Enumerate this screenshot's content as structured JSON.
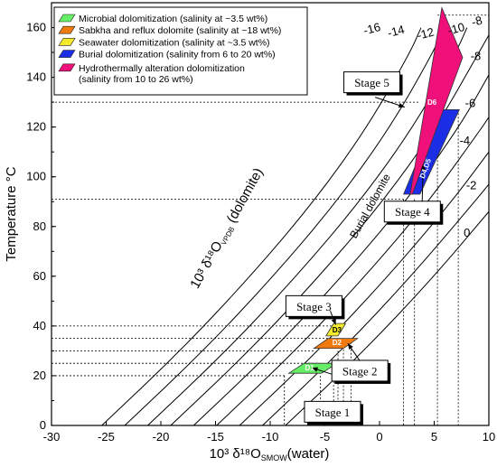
{
  "chart_data": {
    "type": "line",
    "xlabel": "10³ δ¹⁸O",
    "xlabel_sub": "SMOW",
    "xlabel_tail": "(water)",
    "ylabel": "Temperature °C",
    "xlim": [
      -30,
      10
    ],
    "ylim": [
      0,
      170
    ],
    "xticks": [
      -30,
      -25,
      -20,
      -15,
      -10,
      -5,
      0,
      5,
      10
    ],
    "yticks": [
      0,
      20,
      40,
      60,
      80,
      100,
      120,
      140,
      160
    ],
    "curve_axis_label_a": "10³ δ¹⁸O",
    "curve_axis_label_sub": "VPDB",
    "curve_axis_label_b": "(dolomite)",
    "burial_label": "Burial dolomite",
    "series": [
      {
        "dolomite_d18O": 0,
        "label": "0",
        "points": [
          [
            -25.4,
            0
          ],
          [
            -18.2,
            30
          ],
          [
            -11.8,
            60
          ],
          [
            -6.0,
            90
          ],
          [
            -1.1,
            120
          ],
          [
            2.8,
            150
          ],
          [
            3.8,
            160
          ]
        ]
      },
      {
        "dolomite_d18O": -2,
        "label": "",
        "points": [
          [
            -23.3,
            0
          ],
          [
            -16.1,
            30
          ],
          [
            -9.7,
            60
          ],
          [
            -3.9,
            90
          ],
          [
            1.0,
            120
          ],
          [
            4.9,
            150
          ],
          [
            5.9,
            160
          ]
        ]
      },
      {
        "dolomite_d18O": -4,
        "label": "-4",
        "points": [
          [
            -21.2,
            0
          ],
          [
            -14.0,
            30
          ],
          [
            -7.6,
            60
          ],
          [
            -1.8,
            90
          ],
          [
            3.1,
            120
          ],
          [
            7.0,
            150
          ],
          [
            8.0,
            160
          ]
        ]
      },
      {
        "dolomite_d18O": -6,
        "label": "-6",
        "points": [
          [
            -19.1,
            0
          ],
          [
            -11.9,
            30
          ],
          [
            -5.5,
            60
          ],
          [
            0.3,
            90
          ],
          [
            5.2,
            120
          ],
          [
            9.1,
            150
          ],
          [
            10.0,
            157
          ]
        ]
      },
      {
        "dolomite_d18O": -8,
        "label": "-8",
        "points": [
          [
            -17.0,
            0
          ],
          [
            -9.8,
            30
          ],
          [
            -3.4,
            60
          ],
          [
            2.4,
            90
          ],
          [
            7.3,
            120
          ],
          [
            10.0,
            141
          ]
        ]
      },
      {
        "dolomite_d18O": -10,
        "label": "-10",
        "points": [
          [
            -14.9,
            0
          ],
          [
            -7.7,
            30
          ],
          [
            -1.3,
            60
          ],
          [
            4.5,
            90
          ],
          [
            9.4,
            120
          ],
          [
            10.0,
            124
          ]
        ]
      },
      {
        "dolomite_d18O": -12,
        "label": "-12",
        "points": [
          [
            -12.8,
            0
          ],
          [
            -5.6,
            30
          ],
          [
            0.8,
            60
          ],
          [
            6.6,
            90
          ],
          [
            10.0,
            110
          ]
        ]
      },
      {
        "dolomite_d18O": -14,
        "label": "-14",
        "points": [
          [
            -10.7,
            0
          ],
          [
            -3.5,
            30
          ],
          [
            2.9,
            60
          ],
          [
            8.7,
            90
          ],
          [
            10.0,
            97
          ]
        ]
      },
      {
        "dolomite_d18O": -16,
        "label": "-16",
        "points": [
          [
            -8.6,
            0
          ],
          [
            -1.4,
            30
          ],
          [
            5.0,
            60
          ],
          [
            10.0,
            86
          ]
        ]
      }
    ],
    "top_labels": [
      "-16",
      "-14",
      "-12",
      "-10",
      "-8",
      "-6",
      "-4",
      "-2",
      "0"
    ],
    "regions": [
      {
        "label": "D1",
        "name": "Microbial dolomitization",
        "color": "#66ee66",
        "polygon": [
          [
            -8.3,
            21
          ],
          [
            -5.3,
            21
          ],
          [
            -3.9,
            25
          ],
          [
            -6.9,
            25
          ]
        ]
      },
      {
        "label": "D2",
        "name": "Sabkha and reflux dolomite",
        "color": "#f07a10",
        "polygon": [
          [
            -6.0,
            31
          ],
          [
            -3.3,
            31
          ],
          [
            -2.0,
            35
          ],
          [
            -4.7,
            35
          ]
        ]
      },
      {
        "label": "D3",
        "name": "Seawater dolomitization",
        "color": "#f2ea2a",
        "polygon": [
          [
            -4.9,
            36
          ],
          [
            -3.8,
            36
          ],
          [
            -3.1,
            41
          ],
          [
            -4.2,
            41
          ]
        ]
      },
      {
        "label": "D4,D5",
        "name": "Burial dolomitization",
        "color": "#1b2ee6",
        "polygon": [
          [
            2.2,
            93
          ],
          [
            3.7,
            93
          ],
          [
            7.3,
            127
          ],
          [
            5.4,
            127
          ]
        ]
      },
      {
        "label": "D6",
        "name": "Hydrothermally alteration dolomitization",
        "color": "#f0107a",
        "polygon": [
          [
            2.8,
            93
          ],
          [
            5.7,
            168
          ],
          [
            7.6,
            148
          ],
          [
            3.0,
            93
          ]
        ]
      }
    ],
    "legend": [
      {
        "color": "#66ee66",
        "text": "Microbial dolomitization (salinity at ~3.5 wt%)"
      },
      {
        "color": "#f07a10",
        "text": "Sabkha and reflux dolomite (salinity at ~18 wt%)"
      },
      {
        "color": "#f2ea2a",
        "text": "Seawater  dolomitization (salinity at ~3.5 wt%)"
      },
      {
        "color": "#1b2ee6",
        "text": "Burial  dolomitization (salinity from 6 to 20 wt%)"
      },
      {
        "color": "#f0107a",
        "text": "Hydrothermally alteration dolomitization",
        "text2": "(salinity from 10 to 26 wt%)"
      }
    ],
    "stages": [
      {
        "label": "Stage 1",
        "box": [
          -4.3,
          5.5
        ]
      },
      {
        "label": "Stage 2",
        "box": [
          -1.8,
          22
        ]
      },
      {
        "label": "Stage 3",
        "box": [
          -6.0,
          48
        ]
      },
      {
        "label": "Stage 4",
        "box": [
          3.0,
          86
        ]
      },
      {
        "label": "Stage 5",
        "box": [
          -0.7,
          138
        ]
      }
    ]
  }
}
